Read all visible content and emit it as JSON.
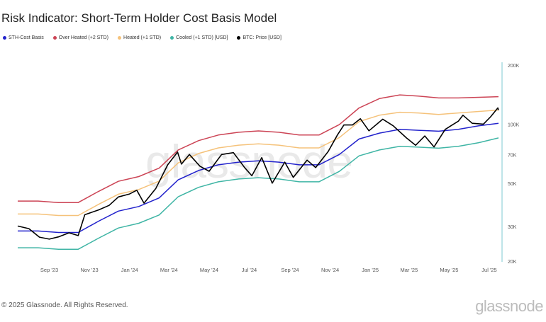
{
  "title": "Risk Indicator: Short-Term Holder Cost Basis Model",
  "footer": "© 2025 Glassnode. All Rights Reserved.",
  "logo": "glassnode",
  "watermark": "glassnode",
  "chart_data": {
    "type": "line",
    "title": "Risk Indicator: Short-Term Holder Cost Basis Model",
    "y_scale": "log",
    "ylim": [
      20000,
      200000
    ],
    "y_axis_position": "right",
    "grid": false,
    "legend": "top-left",
    "y_ticks": [
      {
        "v": 200000,
        "label": "200K"
      },
      {
        "v": 100000,
        "label": "100K"
      },
      {
        "v": 70000,
        "label": "70K"
      },
      {
        "v": 50000,
        "label": "50K"
      },
      {
        "v": 30000,
        "label": "30K"
      },
      {
        "v": 20000,
        "label": "20K"
      }
    ],
    "x_ticks": [
      {
        "d": "2023-09-01",
        "label": "Sep '23"
      },
      {
        "d": "2023-11-01",
        "label": "Nov '23"
      },
      {
        "d": "2024-01-01",
        "label": "Jan '24"
      },
      {
        "d": "2024-03-01",
        "label": "Mar '24"
      },
      {
        "d": "2024-05-01",
        "label": "May '24"
      },
      {
        "d": "2024-07-01",
        "label": "Jul '24"
      },
      {
        "d": "2024-09-01",
        "label": "Sep '24"
      },
      {
        "d": "2024-11-01",
        "label": "Nov '24"
      },
      {
        "d": "2025-01-01",
        "label": "Jan '25"
      },
      {
        "d": "2025-03-01",
        "label": "Mar '25"
      },
      {
        "d": "2025-05-01",
        "label": "May '25"
      },
      {
        "d": "2025-07-01",
        "label": "Jul '25"
      }
    ],
    "xlim": [
      "2023-07-15",
      "2025-07-15"
    ],
    "band_dates": [
      "2023-07-15",
      "2023-08-15",
      "2023-09-15",
      "2023-10-15",
      "2023-11-15",
      "2023-12-15",
      "2024-01-15",
      "2024-02-15",
      "2024-03-15",
      "2024-04-15",
      "2024-05-15",
      "2024-06-15",
      "2024-07-15",
      "2024-08-15",
      "2024-09-15",
      "2024-10-15",
      "2024-11-15",
      "2024-12-15",
      "2025-01-15",
      "2025-02-15",
      "2025-03-15",
      "2025-04-15",
      "2025-05-15",
      "2025-06-15",
      "2025-07-15"
    ],
    "series": [
      {
        "name": "STH-Cost Basis",
        "color": "#2222cc",
        "values": [
          28500,
          28500,
          28000,
          28000,
          32000,
          36000,
          38000,
          42000,
          52000,
          58000,
          62000,
          64000,
          65000,
          64000,
          62000,
          62000,
          70000,
          84000,
          90000,
          94000,
          93000,
          92000,
          94000,
          98000,
          101000
        ]
      },
      {
        "name": "Over Heated (+2 STD)",
        "color": "#cc4455",
        "values": [
          40500,
          40500,
          39800,
          39800,
          45400,
          51100,
          54000,
          59600,
          73800,
          82400,
          88000,
          90900,
          92300,
          90900,
          88000,
          88000,
          99400,
          121000,
          135000,
          141000,
          139000,
          136000,
          136000,
          137000,
          138000
        ]
      },
      {
        "name": "Heated (+1 STD)",
        "color": "#f5c27a",
        "values": [
          34800,
          34800,
          34200,
          34200,
          39000,
          43900,
          46400,
          51200,
          63400,
          70800,
          75600,
          78100,
          79300,
          78100,
          75600,
          75600,
          85400,
          103000,
          111000,
          115000,
          114000,
          112000,
          114000,
          116000,
          118000
        ]
      },
      {
        "name": "Cooled (+1 STD) [USD]",
        "color": "#3fb5a5",
        "values": [
          23400,
          23400,
          23000,
          23000,
          26200,
          29500,
          31200,
          34400,
          42600,
          47600,
          50800,
          52500,
          53300,
          52500,
          50800,
          50800,
          57400,
          68900,
          73800,
          77100,
          76300,
          75400,
          77100,
          80400,
          85000
        ]
      },
      {
        "name": "BTC: Price [USD]",
        "color": "#000000",
        "points": [
          [
            "2023-07-15",
            30200
          ],
          [
            "2023-08-01",
            29300
          ],
          [
            "2023-08-17",
            26500
          ],
          [
            "2023-09-01",
            25900
          ],
          [
            "2023-09-15",
            26600
          ],
          [
            "2023-10-01",
            27900
          ],
          [
            "2023-10-15",
            27000
          ],
          [
            "2023-10-25",
            34500
          ],
          [
            "2023-11-15",
            36500
          ],
          [
            "2023-12-01",
            38500
          ],
          [
            "2023-12-15",
            42500
          ],
          [
            "2024-01-01",
            44000
          ],
          [
            "2024-01-12",
            46000
          ],
          [
            "2024-01-23",
            39500
          ],
          [
            "2024-02-10",
            47000
          ],
          [
            "2024-02-28",
            62000
          ],
          [
            "2024-03-14",
            72000
          ],
          [
            "2024-03-20",
            62500
          ],
          [
            "2024-04-01",
            70000
          ],
          [
            "2024-04-17",
            61000
          ],
          [
            "2024-05-01",
            57500
          ],
          [
            "2024-05-20",
            70000
          ],
          [
            "2024-06-07",
            71500
          ],
          [
            "2024-06-24",
            60000
          ],
          [
            "2024-07-05",
            54500
          ],
          [
            "2024-07-20",
            67500
          ],
          [
            "2024-08-05",
            50000
          ],
          [
            "2024-08-24",
            64000
          ],
          [
            "2024-09-06",
            53500
          ],
          [
            "2024-09-27",
            65500
          ],
          [
            "2024-10-10",
            60000
          ],
          [
            "2024-10-29",
            72500
          ],
          [
            "2024-11-12",
            88000
          ],
          [
            "2024-11-22",
            99000
          ],
          [
            "2024-12-05",
            99000
          ],
          [
            "2024-12-17",
            106500
          ],
          [
            "2024-12-30",
            92500
          ],
          [
            "2025-01-20",
            106000
          ],
          [
            "2025-02-05",
            98000
          ],
          [
            "2025-02-25",
            85000
          ],
          [
            "2025-03-11",
            78000
          ],
          [
            "2025-03-25",
            87000
          ],
          [
            "2025-04-08",
            76500
          ],
          [
            "2025-04-25",
            94000
          ],
          [
            "2025-05-15",
            103500
          ],
          [
            "2025-05-22",
            111000
          ],
          [
            "2025-06-05",
            101000
          ],
          [
            "2025-06-22",
            100000
          ],
          [
            "2025-07-03",
            109000
          ],
          [
            "2025-07-14",
            121000
          ],
          [
            "2025-07-15",
            118000
          ]
        ]
      }
    ]
  }
}
